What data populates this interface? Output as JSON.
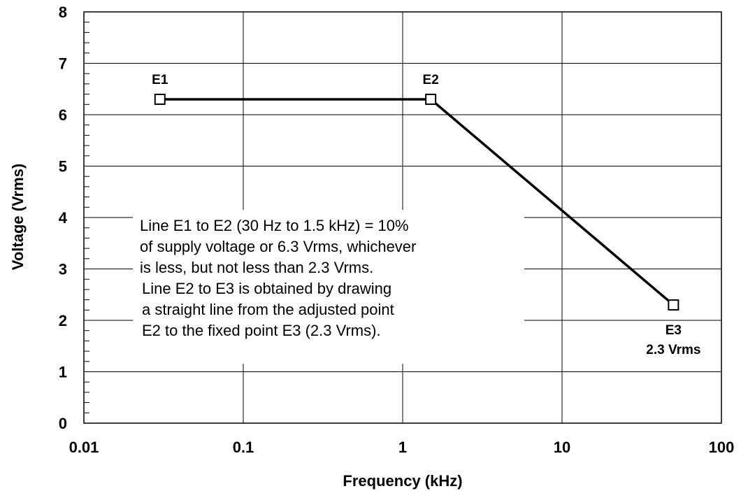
{
  "chart_data": {
    "type": "line",
    "xlabel": "Frequency (kHz)",
    "ylabel": "Voltage (Vrms)",
    "x_scale": "log",
    "xlim": [
      0.01,
      100
    ],
    "ylim": [
      0,
      8
    ],
    "x_ticks": [
      "0.01",
      "0.1",
      "1",
      "10",
      "100"
    ],
    "y_ticks": [
      "0",
      "1",
      "2",
      "3",
      "4",
      "5",
      "6",
      "7",
      "8"
    ],
    "grid": true,
    "series": [
      {
        "points": [
          {
            "x": 0.03,
            "y": 6.3,
            "label": "E1"
          },
          {
            "x": 1.5,
            "y": 6.3,
            "label": "E2"
          },
          {
            "x": 50,
            "y": 2.3,
            "label": "E3",
            "sublabel": "2.3 Vrms"
          }
        ]
      }
    ],
    "annotation_lines": [
      "Line E1 to E2 (30 Hz to 1.5 kHz) = 10%",
      "of supply voltage or 6.3 Vrms, whichever",
      "is less, but not less than 2.3 Vrms.",
      "Line E2 to E3 is obtained by drawing",
      "a straight line from the adjusted point",
      "E2 to the fixed point E3 (2.3 Vrms)."
    ]
  }
}
